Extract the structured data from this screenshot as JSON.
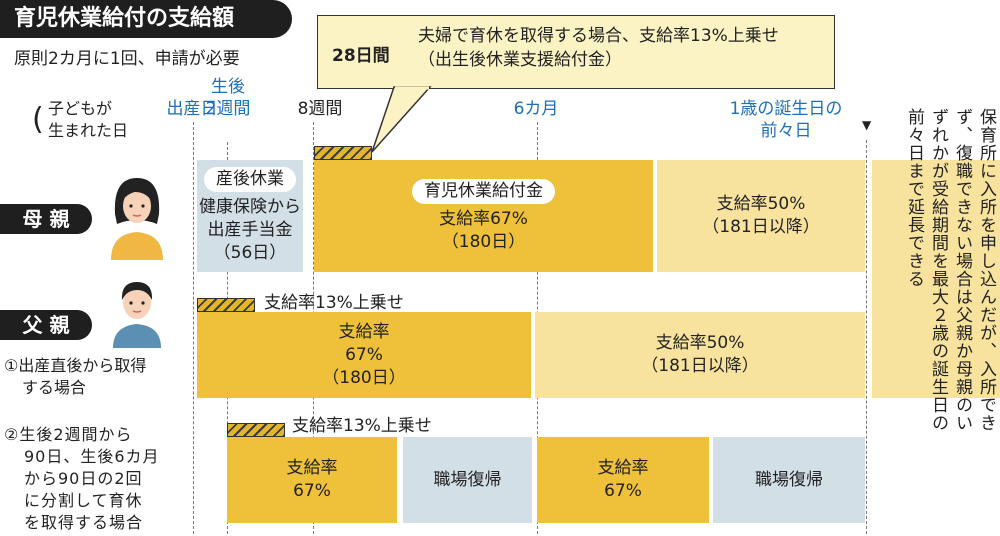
{
  "title": "育児休業給付の支給額",
  "subtitle": "原則2カ月に1回、申請が必要",
  "callout": {
    "days": "28日間",
    "line1": "夫婦で育休を取得する場合、支給率13%上乗せ",
    "line2": "（出生後休業支援給付金）"
  },
  "timeline": {
    "birth_note": "（子どもが生まれた日",
    "birth_note_l1": "子どもが",
    "birth_note_l2": "生まれた日",
    "birth": "出産日",
    "week2_l1": "生後",
    "week2_l2": "2週間",
    "week8": "8週間",
    "month6": "6カ月",
    "pre_bday_l1": "1歳の誕生日の",
    "pre_bday_l2": "前々日"
  },
  "mother": {
    "label": "母 親",
    "postpartum_title": "産後休業",
    "postpartum_l1": "健康保険から",
    "postpartum_l2": "出産手当金",
    "postpartum_l3": "（56日）",
    "benefit_pill": "育児休業給付金",
    "benefit_rate": "支給率67%",
    "benefit_days": "（180日）",
    "later_rate": "支給率50%",
    "later_days": "（181日以降）"
  },
  "father": {
    "label": "父 親",
    "case1_l1": "①出産直後から取得",
    "case1_l2": "する場合",
    "case1_bonus": "支給率13%上乗せ",
    "case1_rate_l1": "支給率",
    "case1_rate_l2": "67%",
    "case1_days": "（180日）",
    "case1_later_rate": "支給率50%",
    "case1_later_days": "（181日以降）",
    "case2_l1": "②生後2週間から",
    "case2_l2": "90日、生後6カ月",
    "case2_l3": "から90日の2回",
    "case2_l4": "に分割して育休",
    "case2_l5": "を取得する場合",
    "case2_bonus": "支給率13%上乗せ",
    "case2_rate1_l1": "支給率",
    "case2_rate1_l2": "67%",
    "case2_return1": "職場復帰",
    "case2_rate2_l1": "支給率",
    "case2_rate2_l2": "67%",
    "case2_return2": "職場復帰"
  },
  "extension_note": "保育所に入所を申し込んだが、入所できず、復職できない場合は父親か母親のいずれかが受給期間を最大２歳の誕生日の前々日まで延長できる",
  "colors": {
    "benefit": "#efc03a",
    "benefit_light": "#f8e39e",
    "postpartum": "#d3dfe7",
    "accent_text": "#1c6fb8"
  }
}
